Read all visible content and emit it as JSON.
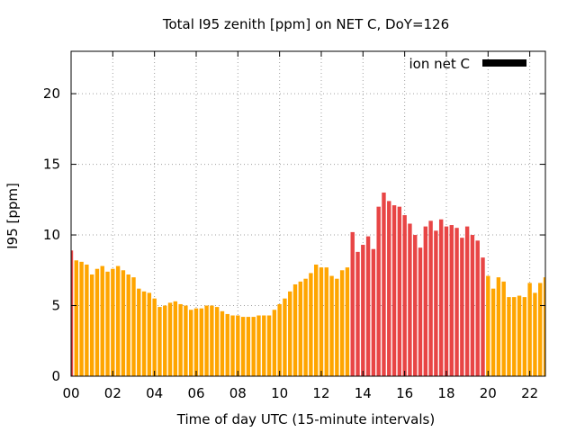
{
  "chart_data": {
    "type": "bar",
    "title": "Total I95 zenith [ppm] on NET C, DoY=126",
    "xlabel": "Time of day UTC (15-minute intervals)",
    "ylabel": "I95 [ppm]",
    "xlim": [
      0,
      22.75
    ],
    "ylim": [
      0,
      23
    ],
    "x_ticks": [
      "00",
      "02",
      "04",
      "06",
      "08",
      "10",
      "12",
      "14",
      "16",
      "18",
      "20",
      "22"
    ],
    "y_ticks": [
      "0",
      "5",
      "10",
      "15",
      "20"
    ],
    "grid": true,
    "legend": {
      "position": "top-right",
      "entries": [
        {
          "label": "ion net C",
          "color": "#000000"
        }
      ]
    },
    "colors": {
      "high": "#e84545",
      "normal": "#ffa500"
    },
    "bar_width_hours": 0.19,
    "series": [
      {
        "name": "ion net C",
        "x": [
          0,
          0.25,
          0.5,
          0.75,
          1,
          1.25,
          1.5,
          1.75,
          2,
          2.25,
          2.5,
          2.75,
          3,
          3.25,
          3.5,
          3.75,
          4,
          4.25,
          4.5,
          4.75,
          5,
          5.25,
          5.5,
          5.75,
          6,
          6.25,
          6.5,
          6.75,
          7,
          7.25,
          7.5,
          7.75,
          8,
          8.25,
          8.5,
          8.75,
          9,
          9.25,
          9.5,
          9.75,
          10,
          10.25,
          10.5,
          10.75,
          11,
          11.25,
          11.5,
          11.75,
          12,
          12.25,
          12.5,
          12.75,
          13,
          13.25,
          13.5,
          13.75,
          14,
          14.25,
          14.5,
          14.75,
          15,
          15.25,
          15.5,
          15.75,
          16,
          16.25,
          16.5,
          16.75,
          17,
          17.25,
          17.5,
          17.75,
          18,
          18.25,
          18.5,
          18.75,
          19,
          19.25,
          19.5,
          19.75,
          20,
          20.25,
          20.5,
          20.75,
          21,
          21.25,
          21.5,
          21.75,
          22,
          22.25,
          22.5,
          22.75
        ],
        "values": [
          8.9,
          8.2,
          8.1,
          7.9,
          7.2,
          7.6,
          7.8,
          7.4,
          7.6,
          7.8,
          7.5,
          7.2,
          7.0,
          6.2,
          6.0,
          5.9,
          5.5,
          4.9,
          5.0,
          5.2,
          5.3,
          5.1,
          5.0,
          4.7,
          4.8,
          4.8,
          5.0,
          5.0,
          4.9,
          4.6,
          4.4,
          4.3,
          4.3,
          4.2,
          4.2,
          4.2,
          4.3,
          4.3,
          4.3,
          4.7,
          5.1,
          5.5,
          6.0,
          6.5,
          6.7,
          6.9,
          7.3,
          7.9,
          7.7,
          7.7,
          7.1,
          6.9,
          7.5,
          7.7,
          10.2,
          8.8,
          9.3,
          9.9,
          9.0,
          12.0,
          13.0,
          12.4,
          12.1,
          12.0,
          11.4,
          10.8,
          10.0,
          9.1,
          10.6,
          11.0,
          10.3,
          11.1,
          10.6,
          10.7,
          10.5,
          9.8,
          10.6,
          10.0,
          9.6,
          8.4,
          7.1,
          6.2,
          7.0,
          6.7,
          5.6,
          5.6,
          5.7,
          5.6,
          6.6,
          5.9,
          6.6,
          7.0
        ],
        "category": [
          "high",
          "normal",
          "normal",
          "normal",
          "normal",
          "normal",
          "normal",
          "normal",
          "normal",
          "normal",
          "normal",
          "normal",
          "normal",
          "normal",
          "normal",
          "normal",
          "normal",
          "normal",
          "normal",
          "normal",
          "normal",
          "normal",
          "normal",
          "normal",
          "normal",
          "normal",
          "normal",
          "normal",
          "normal",
          "normal",
          "normal",
          "normal",
          "normal",
          "normal",
          "normal",
          "normal",
          "normal",
          "normal",
          "normal",
          "normal",
          "normal",
          "normal",
          "normal",
          "normal",
          "normal",
          "normal",
          "normal",
          "normal",
          "normal",
          "normal",
          "normal",
          "normal",
          "normal",
          "normal",
          "high",
          "high",
          "high",
          "high",
          "high",
          "high",
          "high",
          "high",
          "high",
          "high",
          "high",
          "high",
          "high",
          "high",
          "high",
          "high",
          "high",
          "high",
          "high",
          "high",
          "high",
          "high",
          "high",
          "high",
          "high",
          "high",
          "normal",
          "normal",
          "normal",
          "normal",
          "normal",
          "normal",
          "normal",
          "normal",
          "normal",
          "normal",
          "normal",
          "normal"
        ]
      }
    ]
  }
}
